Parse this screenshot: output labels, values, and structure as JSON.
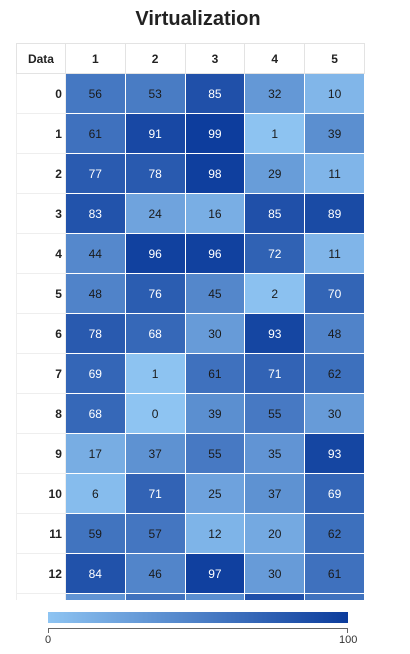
{
  "title": "Virtualization",
  "corner_label": "Data",
  "colors": {
    "low": "#8ec4f2",
    "high": "#0c3c9c"
  },
  "chart_data": {
    "type": "heatmap",
    "title": "Virtualization",
    "columns": [
      "1",
      "2",
      "3",
      "4",
      "5"
    ],
    "rows": [
      "0",
      "1",
      "2",
      "3",
      "4",
      "5",
      "6",
      "7",
      "8",
      "9",
      "10",
      "11",
      "12"
    ],
    "values": [
      [
        56,
        53,
        85,
        32,
        10
      ],
      [
        61,
        91,
        99,
        1,
        39
      ],
      [
        77,
        78,
        98,
        29,
        11
      ],
      [
        83,
        24,
        16,
        85,
        89
      ],
      [
        44,
        96,
        96,
        72,
        11
      ],
      [
        48,
        76,
        45,
        2,
        70
      ],
      [
        78,
        68,
        30,
        93,
        48
      ],
      [
        69,
        1,
        61,
        71,
        62
      ],
      [
        68,
        0,
        39,
        55,
        30
      ],
      [
        17,
        37,
        55,
        35,
        93
      ],
      [
        6,
        71,
        25,
        37,
        69
      ],
      [
        59,
        57,
        12,
        20,
        62
      ],
      [
        84,
        46,
        97,
        30,
        61
      ]
    ],
    "range": [
      0,
      100
    ],
    "legend": {
      "min_label": "0",
      "max_label": "100",
      "placement": "bottom"
    }
  }
}
